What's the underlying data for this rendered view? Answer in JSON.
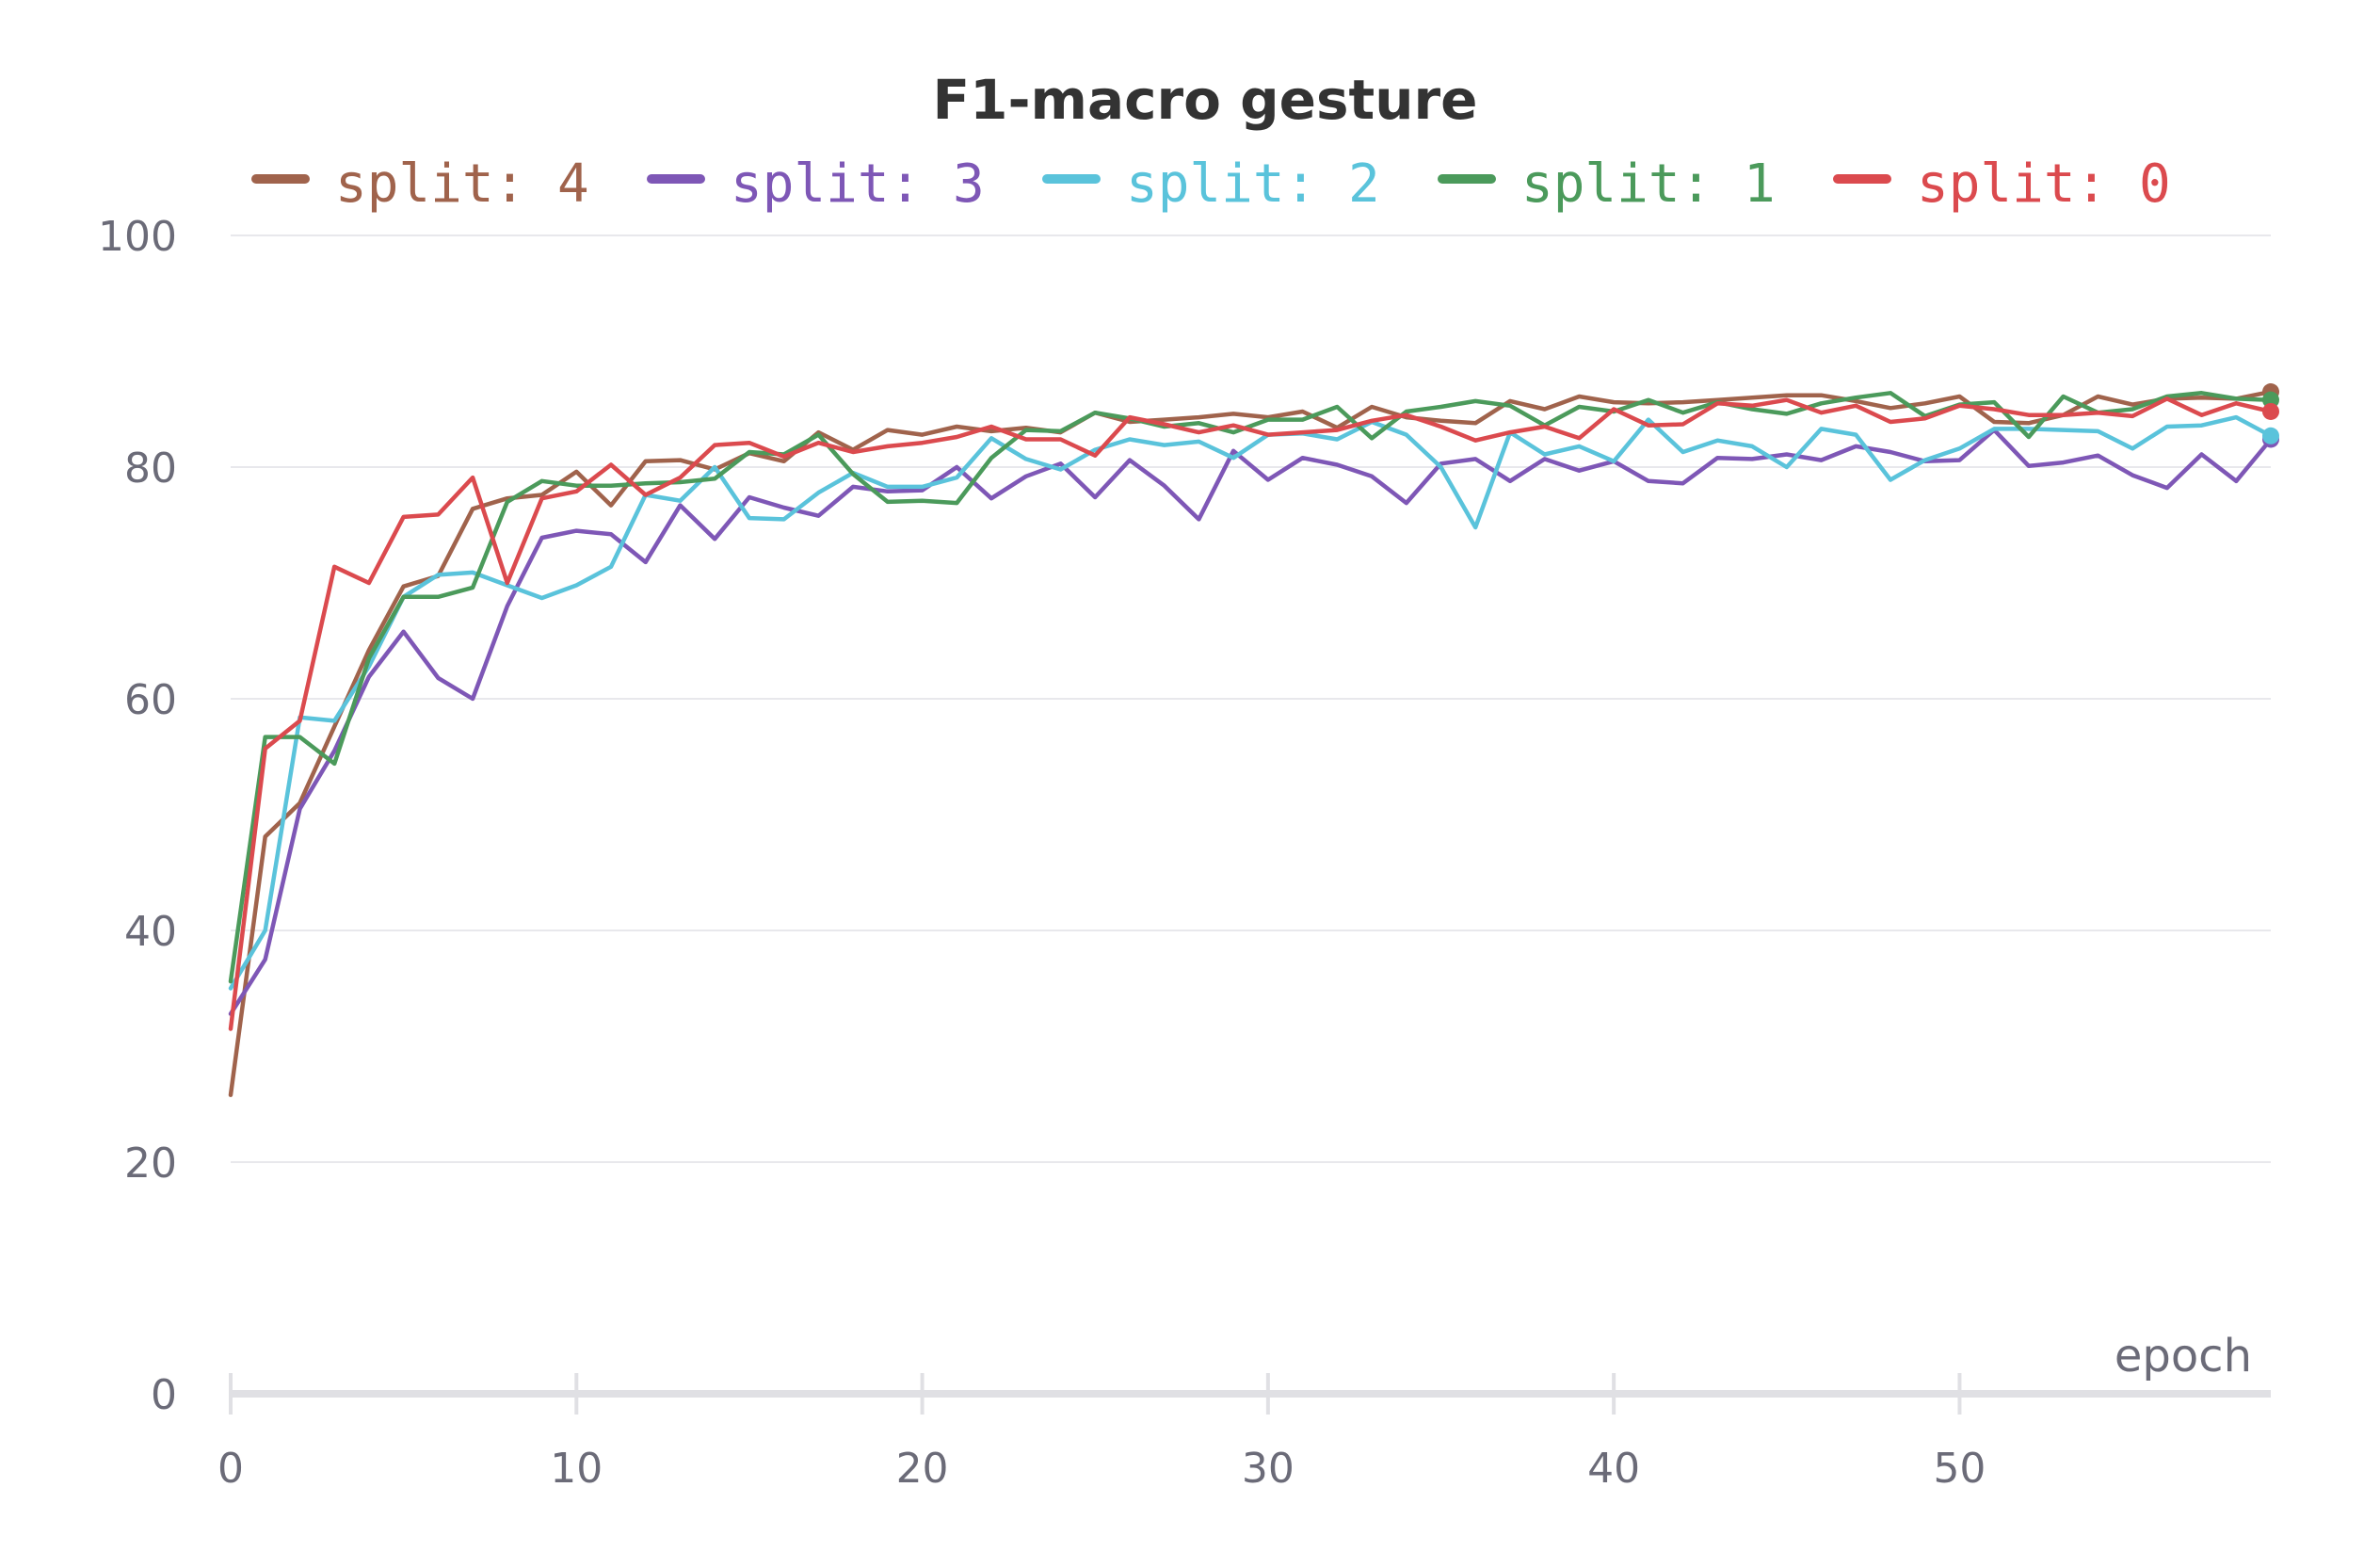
{
  "chart_data": {
    "type": "line",
    "title": "F1-macro gesture",
    "xlabel": "epoch",
    "ylabel": "",
    "xlim": [
      0,
      59
    ],
    "ylim": [
      0,
      100
    ],
    "xticks": [
      0,
      10,
      20,
      30,
      40,
      50
    ],
    "yticks": [
      0,
      20,
      40,
      60,
      80,
      100
    ],
    "grid": true,
    "legend": "top",
    "series": [
      {
        "name": "split: 4",
        "color": "#a0634c",
        "values": [
          25.8,
          48.1,
          51.0,
          57.6,
          64.2,
          69.7,
          70.6,
          76.4,
          77.3,
          77.6,
          79.6,
          76.7,
          80.5,
          80.6,
          79.8,
          81.2,
          80.5,
          83.0,
          81.5,
          83.2,
          82.8,
          83.5,
          83.1,
          83.4,
          83.0,
          84.7,
          83.9,
          84.1,
          84.3,
          84.6,
          84.3,
          84.8,
          83.4,
          85.2,
          84.3,
          84.0,
          83.8,
          85.7,
          85.0,
          86.1,
          85.6,
          85.5,
          85.6,
          85.8,
          86.0,
          86.2,
          86.2,
          85.7,
          85.1,
          85.5,
          86.1,
          83.9,
          83.8,
          84.5,
          86.1,
          85.4,
          85.9,
          86.0,
          85.9,
          86.5
        ]
      },
      {
        "name": "split: 3",
        "color": "#7e57b6",
        "values": [
          32.8,
          37.5,
          50.5,
          55.5,
          61.9,
          65.8,
          61.8,
          60.0,
          68.0,
          73.9,
          74.5,
          74.2,
          71.8,
          76.7,
          73.8,
          77.4,
          76.5,
          75.8,
          78.3,
          77.9,
          78.0,
          80.0,
          77.3,
          79.2,
          80.3,
          77.4,
          80.6,
          78.4,
          75.5,
          81.4,
          78.9,
          80.8,
          80.2,
          79.2,
          76.9,
          80.3,
          80.7,
          78.8,
          80.7,
          79.7,
          80.5,
          78.8,
          78.6,
          80.8,
          80.7,
          81.1,
          80.6,
          81.8,
          81.3,
          80.5,
          80.6,
          83.2,
          80.1,
          80.4,
          81.0,
          79.3,
          78.2,
          81.1,
          78.8,
          82.4
        ]
      },
      {
        "name": "split: 2",
        "color": "#5ac3db",
        "values": [
          35.0,
          40.0,
          58.4,
          58.1,
          62.8,
          68.8,
          70.7,
          70.9,
          69.8,
          68.7,
          69.8,
          71.4,
          77.6,
          77.1,
          80.0,
          75.6,
          75.5,
          77.8,
          79.5,
          78.3,
          78.3,
          79.1,
          82.5,
          80.7,
          79.8,
          81.5,
          82.4,
          81.9,
          82.2,
          80.8,
          82.8,
          82.9,
          82.4,
          83.9,
          82.8,
          80.0,
          74.8,
          83.0,
          81.1,
          81.8,
          80.5,
          84.1,
          81.3,
          82.3,
          81.8,
          80.0,
          83.3,
          82.8,
          78.9,
          80.6,
          81.6,
          83.3,
          83.3,
          83.2,
          83.1,
          81.6,
          83.5,
          83.6,
          84.3,
          82.7
        ]
      },
      {
        "name": "split: 1",
        "color": "#4b9a5b",
        "values": [
          35.6,
          56.7,
          56.7,
          54.4,
          63.5,
          68.8,
          68.8,
          69.6,
          77.0,
          78.8,
          78.4,
          78.4,
          78.6,
          78.7,
          79.0,
          81.3,
          81.1,
          82.8,
          79.4,
          77.0,
          77.1,
          76.9,
          80.8,
          83.2,
          83.1,
          84.7,
          84.2,
          83.5,
          83.8,
          83.0,
          84.1,
          84.1,
          85.2,
          82.5,
          84.8,
          85.2,
          85.7,
          85.3,
          83.6,
          85.2,
          84.8,
          85.8,
          84.7,
          85.6,
          85.0,
          84.6,
          85.5,
          86.0,
          86.4,
          84.4,
          85.4,
          85.6,
          82.6,
          86.1,
          84.7,
          85.0,
          86.1,
          86.4,
          85.9,
          85.8
        ]
      },
      {
        "name": "split: 0",
        "color": "#db4a4e",
        "values": [
          31.5,
          55.7,
          58.1,
          71.4,
          70.0,
          75.7,
          75.9,
          79.1,
          70.0,
          77.3,
          77.9,
          80.2,
          77.6,
          79.1,
          81.9,
          82.1,
          80.9,
          82.1,
          81.3,
          81.8,
          82.1,
          82.6,
          83.5,
          82.4,
          82.4,
          81.0,
          84.3,
          83.7,
          83.0,
          83.6,
          82.8,
          83.0,
          83.2,
          84.0,
          84.5,
          83.5,
          82.3,
          83.0,
          83.5,
          82.5,
          85.0,
          83.6,
          83.7,
          85.5,
          85.3,
          85.8,
          84.7,
          85.3,
          83.9,
          84.2,
          85.3,
          85.0,
          84.5,
          84.5,
          84.7,
          84.4,
          85.9,
          84.5,
          85.5,
          84.8
        ]
      }
    ]
  }
}
